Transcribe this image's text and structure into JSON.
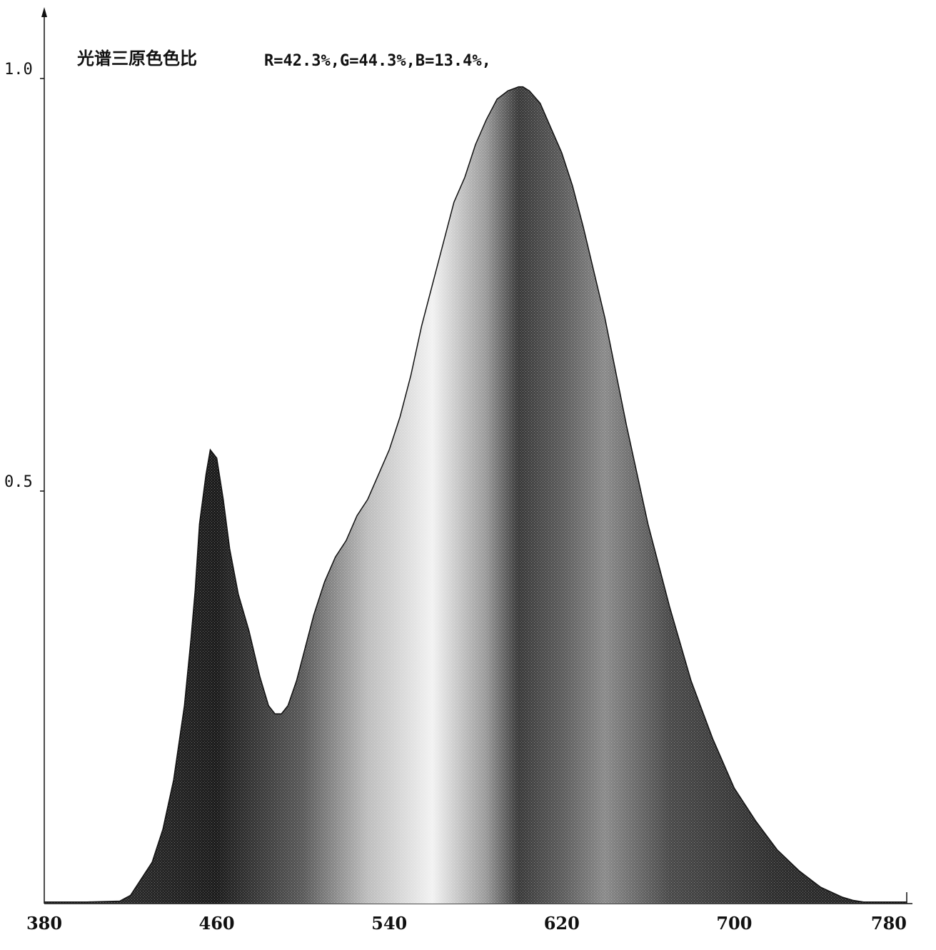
{
  "chart_data": {
    "type": "area",
    "title": "光谱三原色色比",
    "ratio_text": "R=42.3%,G=44.3%,B=13.4%,",
    "xlim": [
      380,
      780
    ],
    "ylim": [
      0,
      1.0
    ],
    "x_ticks": [
      "380",
      "460",
      "540",
      "620",
      "700",
      "780"
    ],
    "y_ticks": [
      "1.0",
      "0.5"
    ],
    "grid": false,
    "series": [
      {
        "x": [
          380,
          400,
          415,
          420,
          425,
          430,
          435,
          440,
          445,
          448,
          450,
          452,
          455,
          457,
          460,
          463,
          466,
          470,
          475,
          480,
          484,
          487,
          490,
          493,
          497,
          500,
          505,
          510,
          515,
          520,
          525,
          530,
          535,
          540,
          545,
          550,
          555,
          560,
          565,
          570,
          575,
          580,
          585,
          590,
          595,
          600,
          602,
          605,
          610,
          615,
          620,
          625,
          630,
          640,
          650,
          660,
          670,
          680,
          690,
          700,
          710,
          720,
          730,
          740,
          750,
          755,
          760,
          780
        ],
        "y": [
          0.002,
          0.002,
          0.003,
          0.01,
          0.03,
          0.05,
          0.09,
          0.15,
          0.24,
          0.32,
          0.38,
          0.46,
          0.52,
          0.55,
          0.54,
          0.49,
          0.43,
          0.375,
          0.33,
          0.275,
          0.24,
          0.23,
          0.23,
          0.24,
          0.27,
          0.3,
          0.35,
          0.39,
          0.42,
          0.44,
          0.47,
          0.49,
          0.52,
          0.55,
          0.59,
          0.64,
          0.7,
          0.75,
          0.8,
          0.85,
          0.88,
          0.92,
          0.95,
          0.975,
          0.985,
          0.99,
          0.99,
          0.985,
          0.97,
          0.94,
          0.91,
          0.87,
          0.82,
          0.71,
          0.58,
          0.46,
          0.36,
          0.27,
          0.2,
          0.14,
          0.1,
          0.065,
          0.04,
          0.02,
          0.008,
          0.004,
          0.002,
          0.002
        ]
      }
    ]
  }
}
